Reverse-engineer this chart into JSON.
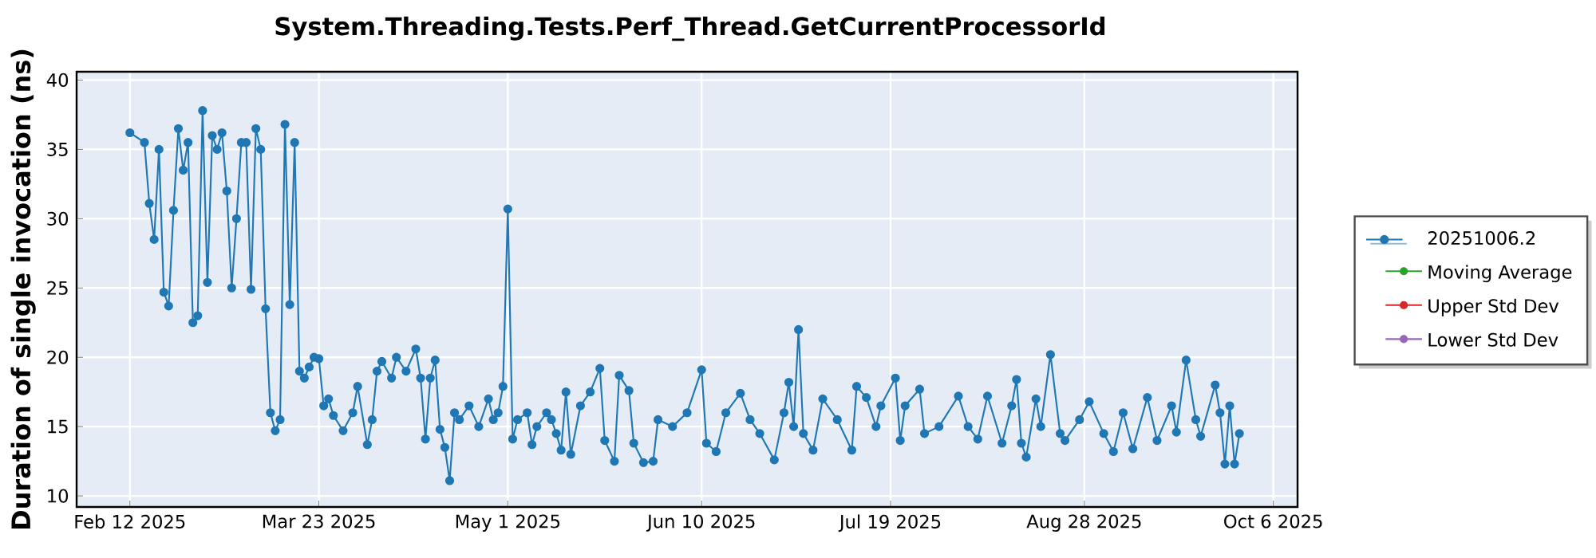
{
  "chart_data": {
    "type": "line",
    "title": "System.Threading.Tests.Perf_Thread.GetCurrentProcessorId",
    "ylabel": "Duration of single invocation (ns)",
    "xlim": [
      "2025-02-01",
      "2025-10-11"
    ],
    "ylim": [
      9.2,
      40.6
    ],
    "xticks": [
      {
        "value": "2025-02-12",
        "label": "Feb 12 2025"
      },
      {
        "value": "2025-03-23",
        "label": "Mar 23 2025"
      },
      {
        "value": "2025-05-01",
        "label": "May 1 2025"
      },
      {
        "value": "2025-06-10",
        "label": "Jun 10 2025"
      },
      {
        "value": "2025-07-19",
        "label": "Jul 19 2025"
      },
      {
        "value": "2025-08-28",
        "label": "Aug 28 2025"
      },
      {
        "value": "2025-10-06",
        "label": "Oct 6 2025"
      }
    ],
    "yticks": [
      10,
      15,
      20,
      25,
      30,
      35,
      40
    ],
    "grid": true,
    "legend": "right",
    "marker": "circle",
    "line_style": "solid",
    "series": [
      {
        "name": "20251006.2",
        "color": "#1f77b4",
        "x": [
          "2025-02-12",
          "2025-02-15",
          "2025-02-16",
          "2025-02-17",
          "2025-02-18",
          "2025-02-19",
          "2025-02-20",
          "2025-02-21",
          "2025-02-22",
          "2025-02-23",
          "2025-02-24",
          "2025-02-25",
          "2025-02-26",
          "2025-02-27",
          "2025-02-28",
          "2025-03-01",
          "2025-03-02",
          "2025-03-03",
          "2025-03-04",
          "2025-03-05",
          "2025-03-06",
          "2025-03-07",
          "2025-03-08",
          "2025-03-09",
          "2025-03-10",
          "2025-03-11",
          "2025-03-12",
          "2025-03-13",
          "2025-03-14",
          "2025-03-15",
          "2025-03-16",
          "2025-03-17",
          "2025-03-18",
          "2025-03-19",
          "2025-03-20",
          "2025-03-21",
          "2025-03-22",
          "2025-03-23",
          "2025-03-24",
          "2025-03-25",
          "2025-03-26",
          "2025-03-28",
          "2025-03-30",
          "2025-03-31",
          "2025-04-02",
          "2025-04-03",
          "2025-04-04",
          "2025-04-05",
          "2025-04-07",
          "2025-04-08",
          "2025-04-10",
          "2025-04-12",
          "2025-04-13",
          "2025-04-14",
          "2025-04-15",
          "2025-04-16",
          "2025-04-17",
          "2025-04-18",
          "2025-04-19",
          "2025-04-20",
          "2025-04-21",
          "2025-04-23",
          "2025-04-25",
          "2025-04-27",
          "2025-04-28",
          "2025-04-29",
          "2025-04-30",
          "2025-05-01",
          "2025-05-02",
          "2025-05-03",
          "2025-05-05",
          "2025-05-06",
          "2025-05-07",
          "2025-05-09",
          "2025-05-10",
          "2025-05-11",
          "2025-05-12",
          "2025-05-13",
          "2025-05-14",
          "2025-05-16",
          "2025-05-18",
          "2025-05-20",
          "2025-05-21",
          "2025-05-23",
          "2025-05-24",
          "2025-05-26",
          "2025-05-27",
          "2025-05-29",
          "2025-05-31",
          "2025-06-01",
          "2025-06-04",
          "2025-06-07",
          "2025-06-10",
          "2025-06-11",
          "2025-06-13",
          "2025-06-15",
          "2025-06-18",
          "2025-06-20",
          "2025-06-22",
          "2025-06-25",
          "2025-06-27",
          "2025-06-28",
          "2025-06-29",
          "2025-06-30",
          "2025-07-01",
          "2025-07-03",
          "2025-07-05",
          "2025-07-08",
          "2025-07-11",
          "2025-07-12",
          "2025-07-14",
          "2025-07-16",
          "2025-07-17",
          "2025-07-20",
          "2025-07-21",
          "2025-07-22",
          "2025-07-25",
          "2025-07-26",
          "2025-07-29",
          "2025-08-02",
          "2025-08-04",
          "2025-08-06",
          "2025-08-08",
          "2025-08-11",
          "2025-08-13",
          "2025-08-14",
          "2025-08-15",
          "2025-08-16",
          "2025-08-18",
          "2025-08-19",
          "2025-08-21",
          "2025-08-23",
          "2025-08-24",
          "2025-08-27",
          "2025-08-29",
          "2025-09-01",
          "2025-09-03",
          "2025-09-05",
          "2025-09-07",
          "2025-09-10",
          "2025-09-12",
          "2025-09-15",
          "2025-09-16",
          "2025-09-18",
          "2025-09-20",
          "2025-09-21",
          "2025-09-24",
          "2025-09-25",
          "2025-09-26",
          "2025-09-27",
          "2025-09-28",
          "2025-09-29"
        ],
        "values": [
          36.2,
          35.5,
          31.1,
          28.5,
          35,
          24.7,
          23.7,
          30.6,
          36.5,
          33.5,
          35.5,
          22.5,
          23,
          37.8,
          25.4,
          36,
          35,
          36.2,
          32,
          25,
          30,
          35.5,
          35.5,
          24.9,
          36.5,
          35,
          23.5,
          16,
          14.7,
          15.5,
          36.8,
          23.8,
          35.5,
          19,
          18.5,
          19.3,
          20,
          19.9,
          16.5,
          17,
          15.8,
          14.7,
          16,
          17.9,
          13.7,
          15.5,
          19,
          19.7,
          18.5,
          20,
          19,
          20.6,
          18.5,
          14.1,
          18.5,
          19.8,
          14.8,
          13.5,
          11.1,
          16,
          15.5,
          16.5,
          15,
          17,
          15.5,
          16,
          17.9,
          30.7,
          14.1,
          15.5,
          16,
          13.7,
          15,
          16,
          15.5,
          14.5,
          13.3,
          17.5,
          13,
          16.5,
          17.5,
          19.2,
          14,
          12.5,
          18.7,
          17.6,
          13.8,
          12.4,
          12.5,
          15.5,
          15,
          16,
          19.1,
          13.8,
          13.2,
          16,
          17.4,
          15.5,
          14.5,
          12.6,
          16,
          18.2,
          15,
          22,
          14.5,
          13.3,
          17,
          15.5,
          13.3,
          17.9,
          17.1,
          15,
          16.5,
          18.5,
          14,
          16.5,
          17.7,
          14.5,
          15,
          17.2,
          15,
          14.1,
          17.2,
          13.8,
          16.5,
          18.4,
          13.8,
          12.8,
          17,
          15,
          20.2,
          14.5,
          14,
          15.5,
          16.8,
          14.5,
          13.2,
          16,
          13.4,
          17.1,
          14,
          16.5,
          14.6,
          19.8,
          15.5,
          14.3,
          18,
          16,
          12.3,
          16.5,
          12.3,
          14.5
        ]
      },
      {
        "name": "Moving Average",
        "color": "#2ca02c"
      },
      {
        "name": "Upper Std Dev",
        "color": "#d62728"
      },
      {
        "name": "Lower Std Dev",
        "color": "#9467bd"
      }
    ]
  }
}
